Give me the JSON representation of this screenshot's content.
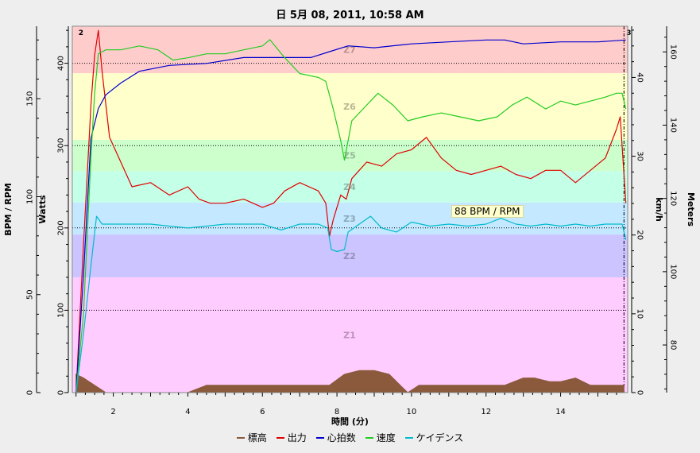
{
  "title": "日 5月 08, 2011, 10:58 AM",
  "tooltip": "88 BPM / RPM",
  "colors": {
    "background": "#eeeeee",
    "plot_bg": "#ffffff",
    "elevation": "#8b5a3c",
    "power": "#e00000",
    "heart_rate": "#0000cc",
    "speed": "#22cc22",
    "cadence": "#00bbcc"
  },
  "chart_data": {
    "type": "line",
    "xlabel": "時間 (分)",
    "xlim": [
      0.9,
      15.8
    ],
    "x_ticks": [
      2,
      4,
      6,
      8,
      10,
      12,
      14
    ],
    "axes": {
      "left_outer": {
        "label": "BPM / RPM",
        "ylim": [
          0,
          187
        ],
        "ticks": [
          0,
          50,
          100,
          150
        ]
      },
      "left_inner": {
        "label": "Watts",
        "ylim": [
          0,
          445
        ],
        "ticks": [
          0,
          100,
          200,
          300,
          400
        ]
      },
      "right_inner": {
        "label": "km/h",
        "ylim": [
          0,
          46.5
        ],
        "ticks": [
          0,
          10,
          20,
          30,
          40
        ]
      },
      "right_outer": {
        "label": "Meters",
        "ylim": [
          67,
          167
        ],
        "ticks": [
          80,
          100,
          120,
          140,
          160
        ]
      }
    },
    "zones": [
      {
        "name": "Z1",
        "from": 0,
        "to": 140,
        "color": "#ffccff"
      },
      {
        "name": "Z2",
        "from": 140,
        "to": 192,
        "color": "#ccc4ff"
      },
      {
        "name": "Z3",
        "from": 192,
        "to": 231,
        "color": "#c4e8ff"
      },
      {
        "name": "Z4",
        "from": 231,
        "to": 269,
        "color": "#c4ffe8"
      },
      {
        "name": "Z5",
        "from": 269,
        "to": 307,
        "color": "#ccffcc"
      },
      {
        "name": "Z6",
        "from": 307,
        "to": 388,
        "color": "#ffffcc"
      },
      {
        "name": "Z7",
        "from": 388,
        "to": 445,
        "color": "#ffcccc"
      }
    ],
    "reference_lines_watts": [
      100,
      200,
      300,
      400
    ],
    "markers": [
      {
        "x": 1.0,
        "label": "2"
      },
      {
        "x": 15.7,
        "label": "3"
      }
    ],
    "series": [
      {
        "name": "標高",
        "axis": "right_outer",
        "color": "#8b5a3c",
        "fill": true,
        "x": [
          1.0,
          1.2,
          1.5,
          1.8,
          2.5,
          3.0,
          3.5,
          4.0,
          4.5,
          5.0,
          6.0,
          7.0,
          7.8,
          8.2,
          8.6,
          9.0,
          9.4,
          9.7,
          9.9,
          10.2,
          10.6,
          11.0,
          11.5,
          12.0,
          12.5,
          13.0,
          13.3,
          13.7,
          14.0,
          14.4,
          14.8,
          15.2,
          15.7
        ],
        "y": [
          72,
          71,
          69,
          67,
          67,
          67,
          67,
          67,
          69,
          69,
          69,
          69,
          69,
          72,
          73,
          73,
          72,
          69,
          67,
          69,
          69,
          69,
          69,
          69,
          69,
          71,
          71,
          70,
          70,
          71,
          69,
          69,
          69
        ]
      },
      {
        "name": "出力",
        "axis": "left_inner",
        "color": "#e00000",
        "x": [
          1.0,
          1.2,
          1.4,
          1.5,
          1.6,
          1.7,
          1.9,
          2.2,
          2.5,
          3.0,
          3.5,
          4.0,
          4.3,
          4.6,
          5.0,
          5.5,
          6.0,
          6.3,
          6.6,
          7.0,
          7.5,
          7.7,
          7.8,
          7.9,
          8.1,
          8.25,
          8.4,
          8.8,
          9.2,
          9.6,
          10.0,
          10.4,
          10.8,
          11.2,
          11.6,
          12.0,
          12.4,
          12.8,
          13.2,
          13.6,
          14.0,
          14.4,
          14.8,
          15.2,
          15.5,
          15.6,
          15.75
        ],
        "y": [
          0,
          180,
          350,
          410,
          440,
          390,
          310,
          280,
          250,
          255,
          240,
          250,
          235,
          230,
          230,
          235,
          225,
          230,
          245,
          255,
          245,
          230,
          190,
          210,
          240,
          235,
          260,
          280,
          275,
          290,
          295,
          310,
          285,
          270,
          265,
          270,
          275,
          265,
          260,
          270,
          270,
          255,
          270,
          285,
          320,
          335,
          230
        ]
      },
      {
        "name": "心拍数",
        "axis": "left_outer",
        "color": "#0000cc",
        "x": [
          1.0,
          1.2,
          1.4,
          1.6,
          1.8,
          2.2,
          2.7,
          3.5,
          4.5,
          5.5,
          6.5,
          7.3,
          7.8,
          8.3,
          9.0,
          10.0,
          11.0,
          12.0,
          12.5,
          13.0,
          14.0,
          15.0,
          15.75
        ],
        "y": [
          0,
          60,
          130,
          145,
          152,
          158,
          164,
          167,
          168,
          171,
          171,
          171,
          174,
          177,
          176,
          178,
          179,
          180,
          180,
          178,
          179,
          179,
          180
        ]
      },
      {
        "name": "速度",
        "axis": "right_inner",
        "color": "#22cc22",
        "x": [
          1.0,
          1.2,
          1.4,
          1.5,
          1.6,
          1.8,
          2.2,
          2.7,
          3.2,
          3.6,
          4.0,
          4.5,
          5.0,
          5.5,
          6.0,
          6.2,
          6.6,
          7.0,
          7.5,
          7.7,
          7.9,
          8.1,
          8.2,
          8.4,
          8.8,
          9.1,
          9.5,
          9.9,
          10.3,
          10.8,
          11.3,
          11.8,
          12.3,
          12.7,
          13.1,
          13.6,
          14.0,
          14.4,
          14.8,
          15.2,
          15.5,
          15.65,
          15.75
        ],
        "y": [
          0,
          10,
          30,
          38,
          43,
          43.5,
          43.5,
          44,
          43.5,
          42.2,
          42.5,
          43,
          43,
          43.5,
          44,
          44.8,
          42.5,
          40.5,
          40,
          39.5,
          36,
          32,
          29.5,
          34.5,
          36.5,
          38,
          36.5,
          34.5,
          35,
          35.5,
          35,
          34.5,
          35,
          36.5,
          37.5,
          36,
          37,
          36.5,
          37,
          37.5,
          38,
          38,
          36
        ]
      },
      {
        "name": "ケイデンス",
        "axis": "left_outer",
        "color": "#00bbcc",
        "x": [
          1.0,
          1.2,
          1.4,
          1.55,
          1.7,
          2.0,
          2.5,
          3.0,
          3.5,
          4.0,
          4.5,
          5.0,
          5.5,
          6.0,
          6.5,
          7.0,
          7.5,
          7.75,
          7.85,
          8.0,
          8.2,
          8.3,
          8.6,
          8.9,
          9.2,
          9.6,
          10.0,
          10.5,
          11.0,
          11.5,
          12.0,
          12.4,
          12.8,
          13.2,
          13.6,
          14.0,
          14.4,
          14.8,
          15.2,
          15.5,
          15.65,
          15.75
        ],
        "y": [
          0,
          30,
          65,
          90,
          86,
          86,
          86,
          86,
          85,
          84,
          85,
          86,
          86,
          86,
          83,
          86,
          86,
          84,
          73,
          72,
          73,
          82,
          86,
          90,
          84,
          82,
          87,
          85,
          86,
          85,
          86,
          89,
          86,
          85,
          86,
          85,
          86,
          85,
          86,
          86,
          86,
          78
        ]
      }
    ]
  }
}
